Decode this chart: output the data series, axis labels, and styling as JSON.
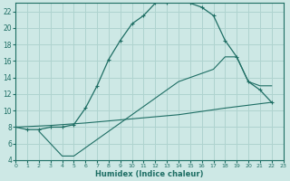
{
  "xlabel": "Humidex (Indice chaleur)",
  "xlim": [
    0,
    23
  ],
  "ylim": [
    4,
    23
  ],
  "yticks": [
    4,
    6,
    8,
    10,
    12,
    14,
    16,
    18,
    20,
    22
  ],
  "xticks": [
    0,
    1,
    2,
    3,
    4,
    5,
    6,
    7,
    8,
    9,
    10,
    11,
    12,
    13,
    14,
    15,
    16,
    17,
    18,
    19,
    20,
    21,
    22,
    23
  ],
  "background_color": "#cde8e5",
  "grid_color": "#afd3cf",
  "line_color": "#1e6e64",
  "curve1_x": [
    0,
    1,
    2,
    3,
    4,
    5,
    6,
    7,
    8,
    9,
    10,
    11,
    12,
    13,
    14,
    15,
    16,
    17,
    18,
    19,
    20,
    21,
    22
  ],
  "curve1_y": [
    8,
    7.7,
    7.7,
    8.0,
    8.0,
    8.3,
    10.3,
    13.0,
    16.2,
    18.5,
    20.5,
    21.5,
    23.0,
    23.0,
    23.3,
    23.0,
    22.5,
    21.5,
    18.5,
    16.5,
    13.5,
    12.5,
    11.0
  ],
  "curve2_x": [
    0,
    3,
    6,
    10,
    14,
    18,
    22
  ],
  "curve2_y": [
    8.0,
    8.2,
    8.5,
    9.0,
    9.5,
    10.3,
    11.0
  ],
  "curve3_x": [
    2,
    3,
    4,
    5,
    6,
    7,
    8,
    9,
    10,
    11,
    12,
    13,
    14,
    15,
    16,
    17,
    18,
    19,
    20,
    21,
    22
  ],
  "curve3_y": [
    7.5,
    6.0,
    4.5,
    4.5,
    5.5,
    6.5,
    7.5,
    8.5,
    9.5,
    10.5,
    11.5,
    12.5,
    13.5,
    14.0,
    14.5,
    15.0,
    16.5,
    16.5,
    13.5,
    13.0,
    13.0
  ]
}
